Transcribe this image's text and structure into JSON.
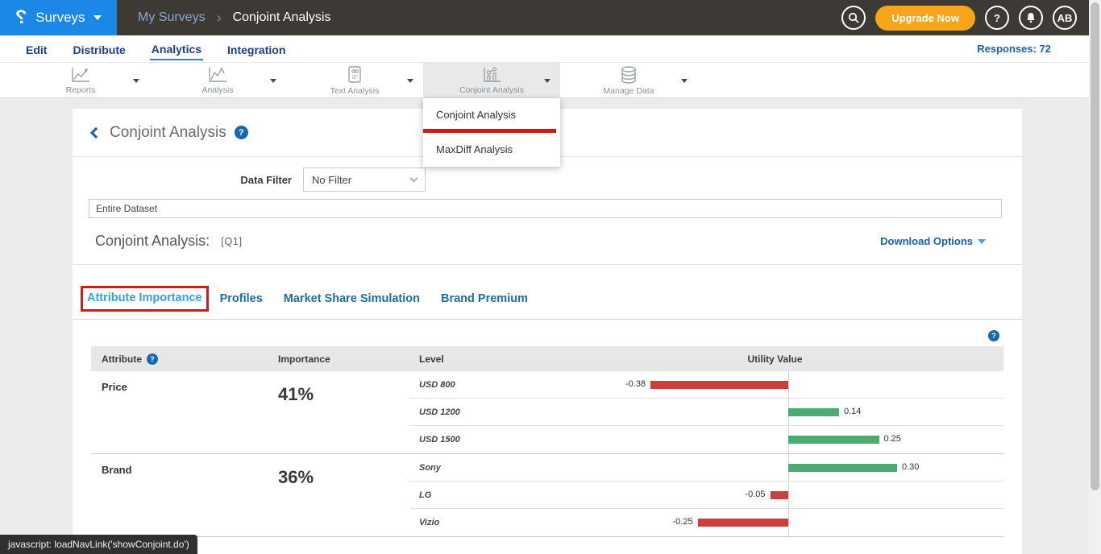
{
  "icons": {
    "logo_glyph": "?",
    "question_glyph": "?"
  },
  "header": {
    "product_label": "Surveys",
    "breadcrumb": {
      "parent": "My Surveys",
      "separator": "›",
      "current": "Conjoint Analysis"
    },
    "upgrade_label": "Upgrade Now",
    "avatar_initials": "AB"
  },
  "nav": {
    "items": [
      {
        "label": "Edit"
      },
      {
        "label": "Distribute"
      },
      {
        "label": "Analytics"
      },
      {
        "label": "Integration"
      }
    ],
    "active": "Analytics",
    "responses": "Responses: 72"
  },
  "toolbar": {
    "items": [
      {
        "label": "Reports",
        "icon": "line-chart"
      },
      {
        "label": "Analysis",
        "icon": "line-chart"
      },
      {
        "label": "Text Analysis",
        "icon": "document"
      },
      {
        "label": "Conjoint Analysis",
        "icon": "conjoint-chart",
        "selected": true
      },
      {
        "label": "Manage Data",
        "icon": "database"
      }
    ]
  },
  "menu": {
    "items": [
      {
        "label": "Conjoint Analysis",
        "annotated": true
      },
      {
        "label": "MaxDiff Analysis"
      }
    ]
  },
  "main": {
    "title": "Conjoint Analysis",
    "filter_label": "Data Filter",
    "filter_value": "No Filter",
    "dataset_value": "Entire Dataset",
    "analysis_label": "Conjoint Analysis:",
    "analysis_question": "[Q1]",
    "download_label": "Download Options",
    "tabs": [
      {
        "label": "Attribute Importance",
        "active": true,
        "annotated": true
      },
      {
        "label": "Profiles"
      },
      {
        "label": "Market Share Simulation"
      },
      {
        "label": "Brand Premium"
      }
    ]
  },
  "table": {
    "headers": {
      "attribute": "Attribute",
      "importance": "Importance",
      "level": "Level",
      "utility": "Utility Value"
    }
  },
  "chart_data": {
    "type": "bar",
    "orientation": "horizontal",
    "title": "Conjoint Analysis [Q1] — Attribute Importance / Utility Values",
    "zero_axis": true,
    "value_range": [
      -0.5,
      0.5
    ],
    "positive_color": "#4cab73",
    "negative_color": "#cb3e3c",
    "groups": [
      {
        "attribute": "Price",
        "importance": 41,
        "importance_display": "41%",
        "levels": [
          {
            "label": "USD 800",
            "value": -0.38,
            "display": "-0.38"
          },
          {
            "label": "USD 1200",
            "value": 0.14,
            "display": "0.14"
          },
          {
            "label": "USD 1500",
            "value": 0.25,
            "display": "0.25"
          }
        ]
      },
      {
        "attribute": "Brand",
        "importance": 36,
        "importance_display": "36%",
        "levels": [
          {
            "label": "Sony",
            "value": 0.3,
            "display": "0.30"
          },
          {
            "label": "LG",
            "value": -0.05,
            "display": "-0.05"
          },
          {
            "label": "Vizio",
            "value": -0.25,
            "display": "-0.25"
          }
        ]
      }
    ]
  },
  "statusbar": {
    "text": "javascript: loadNavLink('showConjoint.do')"
  },
  "colors": {
    "accent_blue": "#1b87e6",
    "navy_link": "#1c3d8f",
    "tab_active": "#36a0d9",
    "tab_inactive": "#1f6ba3",
    "upgrade_orange": "#f9a51a",
    "annotation_red": "#cf1d15",
    "positive_bar": "#4cab73",
    "negative_bar": "#cb3e3c",
    "topbar_bg": "#3d3935"
  }
}
